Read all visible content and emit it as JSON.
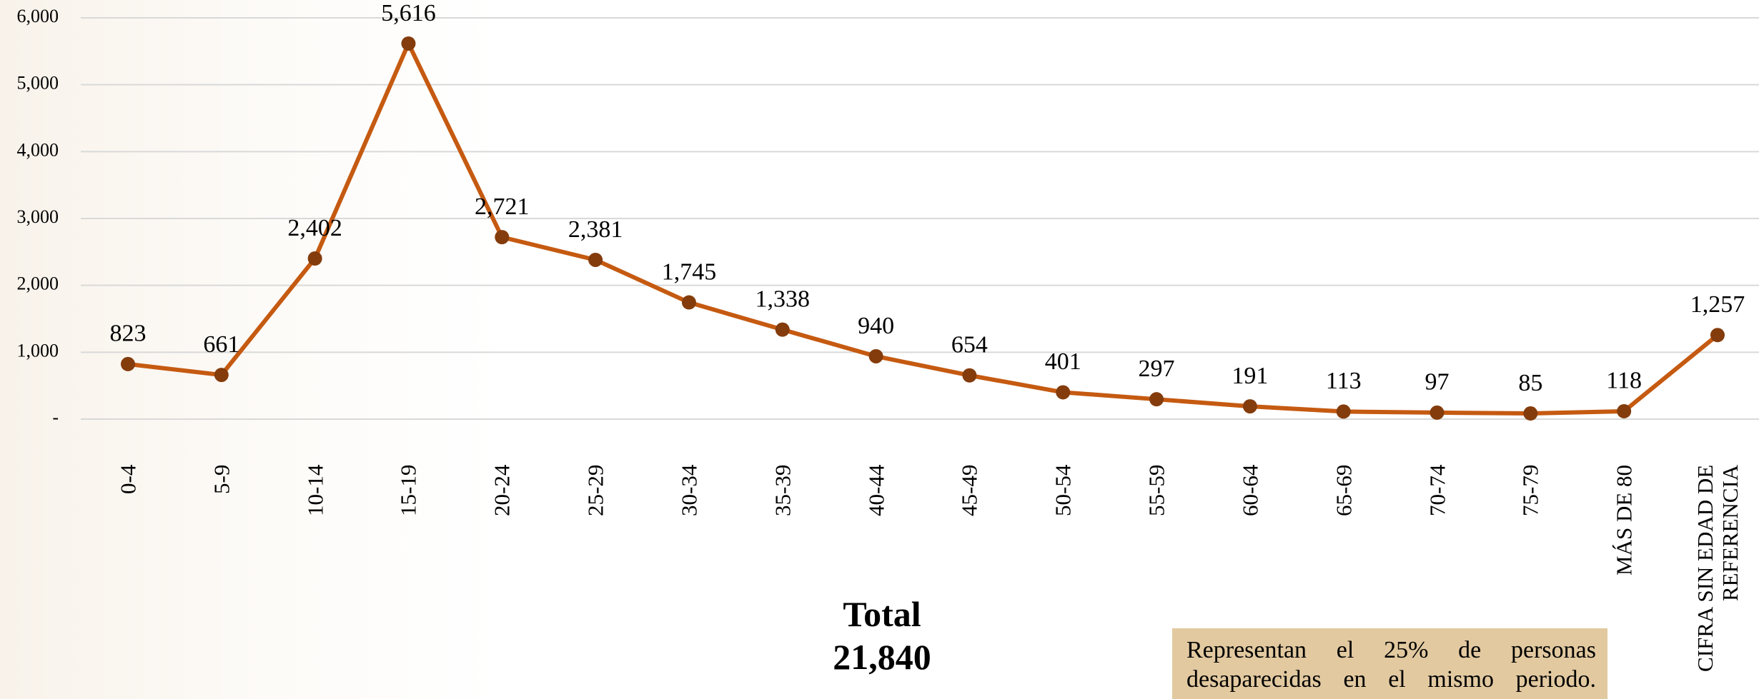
{
  "chart_data": {
    "type": "line",
    "categories": [
      "0-4",
      "5-9",
      "10-14",
      "15-19",
      "20-24",
      "25-29",
      "30-34",
      "35-39",
      "40-44",
      "45-49",
      "50-54",
      "55-59",
      "60-64",
      "65-69",
      "70-74",
      "75-79",
      "MÁS DE 80",
      "CIFRA SIN EDAD DE REFERENCIA"
    ],
    "series": [
      {
        "color": "#c55a11",
        "marker_color": "#843c0c",
        "values": [
          823,
          661,
          2402,
          5616,
          2721,
          2381,
          1745,
          1338,
          940,
          654,
          401,
          297,
          191,
          113,
          97,
          85,
          118,
          1257
        ],
        "value_labels": [
          "823",
          "661",
          "2,402",
          "5,616",
          "2,721",
          "2,381",
          "1,745",
          "1,338",
          "940",
          "654",
          "401",
          "297",
          "191",
          "113",
          "97",
          "85",
          "118",
          "1,257"
        ]
      }
    ],
    "ylim": [
      0,
      6000
    ],
    "yticks": [
      {
        "value": 0,
        "label": "-"
      },
      {
        "value": 1000,
        "label": "1,000"
      },
      {
        "value": 2000,
        "label": "2,000"
      },
      {
        "value": 3000,
        "label": "3,000"
      },
      {
        "value": 4000,
        "label": "4,000"
      },
      {
        "value": 5000,
        "label": "5,000"
      },
      {
        "value": 6000,
        "label": "6,000"
      }
    ],
    "grid": true,
    "total_label": "Total",
    "total_value": "21,840",
    "note": "Representan el 25% de personas desaparecidas en el mismo periodo."
  }
}
